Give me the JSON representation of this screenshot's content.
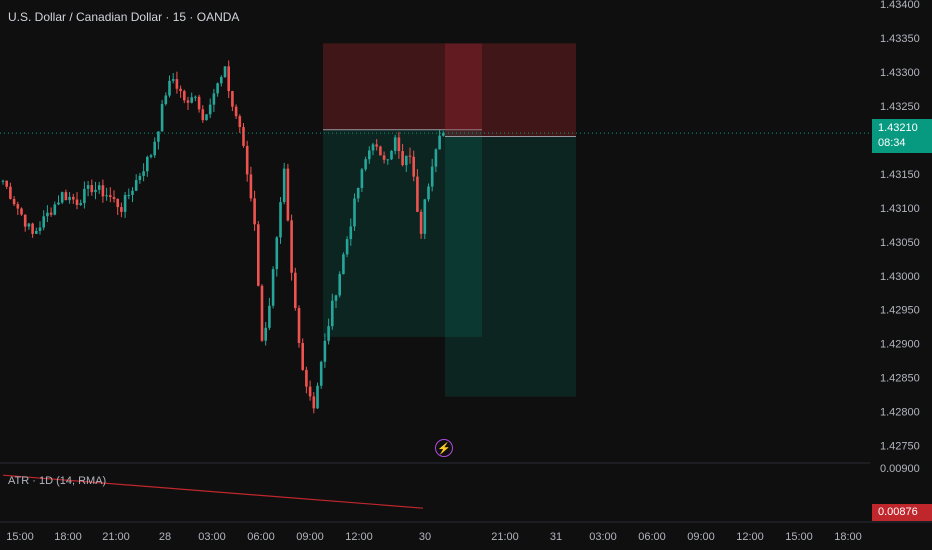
{
  "header": {
    "symbol_title": "U.S. Dollar / Canadian Dollar · 15 · OANDA"
  },
  "price_axis": {
    "ticks": [
      "1.43400",
      "1.43350",
      "1.43300",
      "1.43250",
      "1.43150",
      "1.43100",
      "1.43050",
      "1.43000",
      "1.42950",
      "1.42900",
      "1.42850",
      "1.42800",
      "1.42750"
    ],
    "current_price": "1.43210",
    "countdown": "08:34"
  },
  "time_axis": {
    "ticks": [
      "15:00",
      "18:00",
      "21:00",
      "28",
      "03:00",
      "06:00",
      "09:00",
      "12:00",
      "30",
      "21:00",
      "31",
      "03:00",
      "06:00",
      "09:00",
      "12:00",
      "15:00",
      "18:00"
    ]
  },
  "indicator": {
    "label": "ATR · 1D (14, RMA)",
    "axis_value": "0.00900",
    "current_value": "0.00876"
  },
  "colors": {
    "background": "#0f0f0f",
    "bull": "#26a69a",
    "bear": "#ef5350",
    "badge_green": "#089981",
    "badge_red": "#c0272d",
    "atr_line": "#c0272d"
  },
  "icons": {
    "event_marker": "lightning-bolt-icon"
  },
  "chart_data": {
    "type": "candlestick",
    "title": "U.S. Dollar / Canadian Dollar · 15 · OANDA",
    "ylim": [
      1.4272,
      1.434
    ],
    "last_price": 1.4321,
    "close_path": [
      [
        0,
        1.4314
      ],
      [
        4,
        1.431
      ],
      [
        8,
        1.4306
      ],
      [
        12,
        1.4309
      ],
      [
        16,
        1.4312
      ],
      [
        20,
        1.4311
      ],
      [
        24,
        1.4313
      ],
      [
        28,
        1.4312
      ],
      [
        32,
        1.431
      ],
      [
        36,
        1.4314
      ],
      [
        40,
        1.4318
      ],
      [
        42,
        1.4322
      ],
      [
        44,
        1.4327
      ],
      [
        46,
        1.4329
      ],
      [
        48,
        1.4327
      ],
      [
        50,
        1.4325
      ],
      [
        52,
        1.4327
      ],
      [
        54,
        1.4323
      ],
      [
        56,
        1.4326
      ],
      [
        58,
        1.4328
      ],
      [
        60,
        1.433
      ],
      [
        62,
        1.4325
      ],
      [
        64,
        1.4322
      ],
      [
        66,
        1.4315
      ],
      [
        68,
        1.4308
      ],
      [
        70,
        1.429
      ],
      [
        72,
        1.4296
      ],
      [
        74,
        1.4305
      ],
      [
        76,
        1.4315
      ],
      [
        78,
        1.43
      ],
      [
        80,
        1.429
      ],
      [
        82,
        1.4284
      ],
      [
        84,
        1.4281
      ],
      [
        86,
        1.4287
      ],
      [
        88,
        1.4293
      ],
      [
        90,
        1.4298
      ],
      [
        92,
        1.4303
      ],
      [
        94,
        1.4308
      ],
      [
        96,
        1.4313
      ],
      [
        98,
        1.4317
      ],
      [
        100,
        1.432
      ],
      [
        102,
        1.4317
      ],
      [
        104,
        1.4318
      ],
      [
        106,
        1.432
      ],
      [
        108,
        1.4316
      ],
      [
        110,
        1.4318
      ],
      [
        112,
        1.431
      ],
      [
        113,
        1.4307
      ],
      [
        114,
        1.4312
      ],
      [
        116,
        1.4316
      ],
      [
        118,
        1.432
      ],
      [
        119,
        1.4321
      ]
    ],
    "position": {
      "side": "short",
      "entry": 1.43215,
      "stop": 1.43342,
      "target": 1.4291
    },
    "position_current": {
      "side": "short",
      "entry": 1.43205,
      "stop": 1.43342,
      "target": 1.42822
    },
    "atr": {
      "label": "ATR · 1D (14, RMA)",
      "series": [
        [
          0,
          0.00895
        ],
        [
          110,
          0.00877
        ]
      ]
    }
  }
}
